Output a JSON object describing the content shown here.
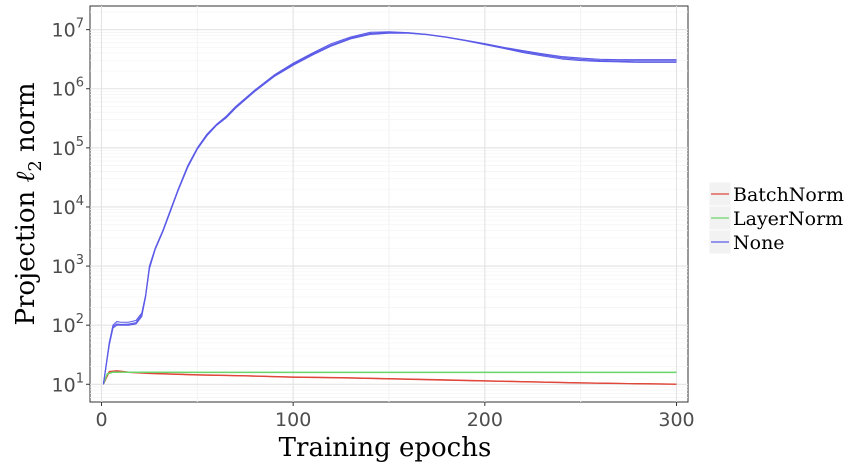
{
  "chart_data": {
    "type": "line",
    "title": "",
    "xlabel": "Training epochs",
    "ylabel_prefix": "Projection ",
    "ylabel_symbol": "ℓ",
    "ylabel_sub": "2",
    "ylabel_suffix": " norm",
    "xlim": [
      -6,
      306
    ],
    "ylog": true,
    "ylim_log10": [
      0.7,
      7.4
    ],
    "x_ticks": [
      0,
      100,
      200,
      300
    ],
    "x_tick_labels": [
      "0",
      "100",
      "200",
      "300"
    ],
    "y_ticks_exp": [
      1,
      2,
      3,
      4,
      5,
      6,
      7
    ],
    "y_tick_base": "10",
    "grid": true,
    "legend_position": "right",
    "series": [
      {
        "name": "BatchNorm",
        "color": "#e0473b",
        "runs": [
          [
            [
              1,
              10
            ],
            [
              4,
              16.5
            ],
            [
              8,
              17
            ],
            [
              15,
              16
            ],
            [
              25,
              15.4
            ],
            [
              50,
              14.5
            ],
            [
              75,
              14
            ],
            [
              100,
              13.3
            ],
            [
              125,
              13
            ],
            [
              150,
              12.5
            ],
            [
              175,
              12
            ],
            [
              200,
              11.5
            ],
            [
              225,
              11
            ],
            [
              250,
              10.6
            ],
            [
              275,
              10.3
            ],
            [
              300,
              10.1
            ]
          ],
          [
            [
              1,
              10
            ],
            [
              4,
              16
            ],
            [
              8,
              16.6
            ],
            [
              15,
              15.8
            ],
            [
              25,
              15.2
            ],
            [
              50,
              14.3
            ],
            [
              75,
              13.8
            ],
            [
              100,
              13.1
            ],
            [
              125,
              12.8
            ],
            [
              150,
              12.3
            ],
            [
              175,
              11.8
            ],
            [
              200,
              11.3
            ],
            [
              225,
              10.9
            ],
            [
              250,
              10.5
            ],
            [
              275,
              10.2
            ],
            [
              300,
              10
            ]
          ],
          [
            [
              1,
              10
            ],
            [
              4,
              16.2
            ],
            [
              8,
              16.8
            ],
            [
              15,
              15.9
            ],
            [
              25,
              15.3
            ],
            [
              50,
              14.4
            ],
            [
              75,
              13.9
            ],
            [
              100,
              13.2
            ],
            [
              125,
              12.9
            ],
            [
              150,
              12.4
            ],
            [
              175,
              11.9
            ],
            [
              200,
              11.4
            ],
            [
              225,
              11
            ],
            [
              250,
              10.6
            ],
            [
              275,
              10.3
            ],
            [
              300,
              10.05
            ]
          ]
        ]
      },
      {
        "name": "LayerNorm",
        "color": "#6cd66c",
        "runs": [
          [
            [
              1,
              10
            ],
            [
              3,
              15
            ],
            [
              6,
              16
            ],
            [
              10,
              16
            ],
            [
              50,
              15.9
            ],
            [
              100,
              15.9
            ],
            [
              150,
              15.9
            ],
            [
              200,
              15.9
            ],
            [
              250,
              15.9
            ],
            [
              300,
              15.9
            ]
          ],
          [
            [
              1,
              10
            ],
            [
              3,
              15.2
            ],
            [
              6,
              16.1
            ],
            [
              10,
              16.1
            ],
            [
              50,
              16
            ],
            [
              100,
              16
            ],
            [
              150,
              16
            ],
            [
              200,
              16
            ],
            [
              250,
              16
            ],
            [
              300,
              16
            ]
          ],
          [
            [
              1,
              10
            ],
            [
              3,
              14.8
            ],
            [
              6,
              15.9
            ],
            [
              10,
              15.9
            ],
            [
              50,
              15.8
            ],
            [
              100,
              15.8
            ],
            [
              150,
              15.8
            ],
            [
              200,
              15.8
            ],
            [
              250,
              15.8
            ],
            [
              300,
              15.8
            ]
          ]
        ]
      },
      {
        "name": "None",
        "color": "#5b5be8",
        "runs": [
          [
            [
              1,
              10
            ],
            [
              4,
              50
            ],
            [
              6,
              100
            ],
            [
              8,
              115
            ],
            [
              10,
              112
            ],
            [
              14,
              112
            ],
            [
              18,
              120
            ],
            [
              21,
              160
            ],
            [
              23,
              320
            ],
            [
              25,
              1000
            ],
            [
              28,
              2000
            ],
            [
              32,
              4000
            ],
            [
              36,
              9000
            ],
            [
              40,
              20000
            ],
            [
              45,
              50000
            ],
            [
              50,
              100000
            ],
            [
              55,
              170000
            ],
            [
              60,
              250000
            ],
            [
              65,
              340000
            ],
            [
              70,
              500000
            ],
            [
              80,
              950000
            ],
            [
              90,
              1700000
            ],
            [
              100,
              2700000
            ],
            [
              110,
              4000000
            ],
            [
              120,
              5800000
            ],
            [
              130,
              7500000
            ],
            [
              140,
              9000000
            ],
            [
              150,
              9200000
            ],
            [
              160,
              8900000
            ],
            [
              170,
              8300000
            ],
            [
              180,
              7500000
            ],
            [
              190,
              6600000
            ],
            [
              200,
              5800000
            ],
            [
              210,
              5000000
            ],
            [
              220,
              4400000
            ],
            [
              230,
              3900000
            ],
            [
              240,
              3500000
            ],
            [
              250,
              3300000
            ],
            [
              260,
              3150000
            ],
            [
              270,
              3100000
            ],
            [
              280,
              3100000
            ],
            [
              290,
              3100000
            ],
            [
              300,
              3100000
            ]
          ],
          [
            [
              1,
              10
            ],
            [
              4,
              45
            ],
            [
              6,
              90
            ],
            [
              8,
              100
            ],
            [
              10,
              100
            ],
            [
              14,
              100
            ],
            [
              18,
              105
            ],
            [
              21,
              140
            ],
            [
              23,
              300
            ],
            [
              25,
              900
            ],
            [
              28,
              1900
            ],
            [
              32,
              3800
            ],
            [
              36,
              8500
            ],
            [
              40,
              19000
            ],
            [
              45,
              47000
            ],
            [
              50,
              95000
            ],
            [
              55,
              160000
            ],
            [
              60,
              240000
            ],
            [
              65,
              320000
            ],
            [
              70,
              470000
            ],
            [
              80,
              900000
            ],
            [
              90,
              1600000
            ],
            [
              100,
              2500000
            ],
            [
              110,
              3700000
            ],
            [
              120,
              5300000
            ],
            [
              130,
              7000000
            ],
            [
              140,
              8300000
            ],
            [
              150,
              8700000
            ],
            [
              160,
              8700000
            ],
            [
              170,
              8200000
            ],
            [
              180,
              7400000
            ],
            [
              190,
              6500000
            ],
            [
              200,
              5600000
            ],
            [
              210,
              4800000
            ],
            [
              220,
              4100000
            ],
            [
              230,
              3600000
            ],
            [
              240,
              3200000
            ],
            [
              250,
              3000000
            ],
            [
              260,
              2900000
            ],
            [
              270,
              2850000
            ],
            [
              280,
              2800000
            ],
            [
              290,
              2800000
            ],
            [
              300,
              2800000
            ]
          ],
          [
            [
              1,
              10
            ],
            [
              4,
              47
            ],
            [
              6,
              95
            ],
            [
              8,
              105
            ],
            [
              10,
              103
            ],
            [
              14,
              104
            ],
            [
              18,
              110
            ],
            [
              21,
              150
            ],
            [
              23,
              310
            ],
            [
              25,
              950
            ],
            [
              28,
              1950
            ],
            [
              32,
              3900
            ],
            [
              36,
              8700
            ],
            [
              40,
              19500
            ],
            [
              45,
              48000
            ],
            [
              50,
              97000
            ],
            [
              55,
              165000
            ],
            [
              60,
              245000
            ],
            [
              65,
              330000
            ],
            [
              70,
              480000
            ],
            [
              80,
              920000
            ],
            [
              90,
              1650000
            ],
            [
              100,
              2600000
            ],
            [
              110,
              3850000
            ],
            [
              120,
              5500000
            ],
            [
              130,
              7200000
            ],
            [
              140,
              8600000
            ],
            [
              150,
              8900000
            ],
            [
              160,
              8800000
            ],
            [
              170,
              8250000
            ],
            [
              180,
              7450000
            ],
            [
              190,
              6550000
            ],
            [
              200,
              5700000
            ],
            [
              210,
              4900000
            ],
            [
              220,
              4250000
            ],
            [
              230,
              3750000
            ],
            [
              240,
              3350000
            ],
            [
              250,
              3150000
            ],
            [
              260,
              3000000
            ],
            [
              270,
              2950000
            ],
            [
              280,
              2950000
            ],
            [
              290,
              2950000
            ],
            [
              300,
              2950000
            ]
          ]
        ]
      }
    ]
  }
}
